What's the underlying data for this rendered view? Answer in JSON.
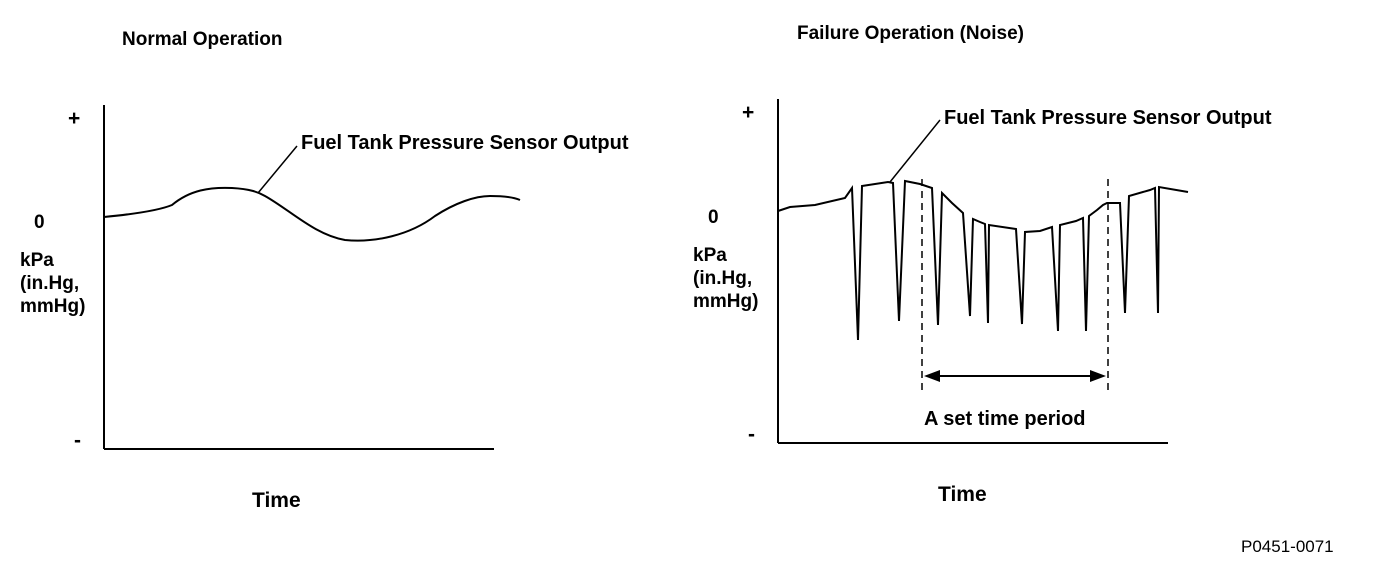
{
  "diagram": {
    "figure_code": "P0451-0071",
    "left_panel": {
      "title": "Normal Operation",
      "callout": "Fuel Tank Pressure Sensor Output",
      "y_plus": "+",
      "y_zero": "0",
      "y_minus": "-",
      "y_unit": "kPa\n(in.Hg,\nmmHg)",
      "x_label": "Time"
    },
    "right_panel": {
      "title": "Failure Operation (Noise)",
      "callout": "Fuel Tank Pressure Sensor Output",
      "y_plus": "+",
      "y_zero": "0",
      "y_minus": "-",
      "y_unit": "kPa\n(in.Hg,\nmmHg)",
      "x_label": "Time",
      "period_label": "A set time period"
    }
  }
}
